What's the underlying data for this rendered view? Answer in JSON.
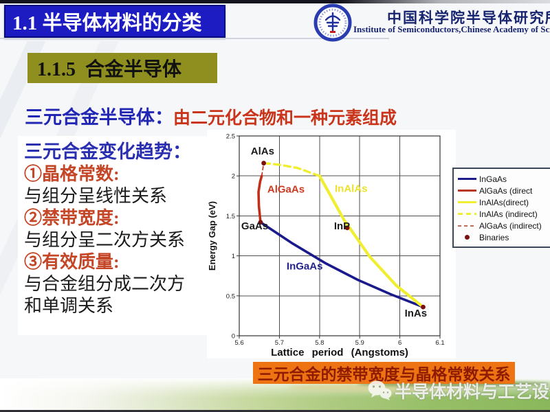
{
  "header": {
    "title": "1.1 半导体材料的分类"
  },
  "org": {
    "logo_icon": "cas-semiconductor-institute-logo",
    "name_cn": "中国科学院半导体研究所",
    "name_en": "Institute of Semiconductors,Chinese Academy of Sciences"
  },
  "section": {
    "label": "1.1.5  合金半导体"
  },
  "intro": {
    "lead": "三元合金半导体：",
    "desc": "由二元化合物和一种元素组成"
  },
  "notes": {
    "lines": [
      "三元合金变化趋势：",
      "①晶格常数:",
      "与组分呈线性关系",
      "②禁带宽度:",
      "与组分呈二次方关系",
      "③有效质量:",
      "与合金组分成二次方",
      "和单调关系"
    ]
  },
  "caption": {
    "text": "三元合金的禁带宽度与晶格常数关系"
  },
  "watermark": {
    "icon": "wechat-icon",
    "text": "半导体材料与工艺设备"
  },
  "colors": {
    "title_bg": "#1c1cc2",
    "section_bg": "#8f8f1f",
    "accent_blue": "#2126b4",
    "accent_red": "#c9341a",
    "banner_bg": "#ee7413",
    "banner_text": "#8e1b00"
  },
  "chart_data": {
    "type": "line",
    "title": "",
    "xlabel": "Lattice period (Angstoms)",
    "ylabel": "Energy Gap (eV)",
    "xlim": [
      5.6,
      6.1
    ],
    "ylim": [
      0,
      2.5
    ],
    "grid": true,
    "legend_position": "right-outside",
    "xticks": [
      "5.6",
      "5.7",
      "5.8",
      "5.9",
      "6",
      "6.1"
    ],
    "yticks": [
      "2.5",
      "2",
      "1.5",
      "1",
      "0.5",
      "0"
    ],
    "series": [
      {
        "name": "InGaAs",
        "style": "solid",
        "color": "#1a1a8c",
        "points": [
          [
            5.653,
            1.42
          ],
          [
            5.734,
            1.15
          ],
          [
            5.814,
            0.91
          ],
          [
            5.895,
            0.7
          ],
          [
            5.977,
            0.52
          ],
          [
            6.058,
            0.36
          ]
        ]
      },
      {
        "name": "AlGaAs (direct)",
        "style": "solid",
        "color": "#c03018",
        "points": [
          [
            5.653,
            1.42
          ],
          [
            5.649,
            1.62
          ],
          [
            5.648,
            1.8
          ],
          [
            5.652,
            1.93
          ],
          [
            5.656,
            2.0
          ]
        ]
      },
      {
        "name": "InAlAs(direct)",
        "style": "solid",
        "color": "#f0ee30",
        "points": [
          [
            5.8,
            2.0
          ],
          [
            5.861,
            1.45
          ],
          [
            5.925,
            0.99
          ],
          [
            5.991,
            0.63
          ],
          [
            6.058,
            0.36
          ]
        ]
      },
      {
        "name": "InAlAs (indirect)",
        "style": "dashed",
        "color": "#f0ee30",
        "points": [
          [
            5.661,
            2.16
          ],
          [
            5.7,
            2.14
          ],
          [
            5.745,
            2.1
          ],
          [
            5.8,
            2.0
          ]
        ]
      },
      {
        "name": "AlGaAs (indirect)",
        "style": "thin-dashed",
        "color": "#c03018",
        "points": [
          [
            5.656,
            2.0
          ],
          [
            5.661,
            2.16
          ]
        ]
      }
    ],
    "binaries": [
      {
        "label": "AlAs",
        "x": 5.661,
        "y": 2.16
      },
      {
        "label": "GaAs",
        "x": 5.653,
        "y": 1.42
      },
      {
        "label": "InP",
        "x": 5.869,
        "y": 1.35
      },
      {
        "label": "InAs",
        "x": 6.058,
        "y": 0.36
      }
    ],
    "labels": [
      {
        "text": "AlAs",
        "x": 5.658,
        "y": 2.27,
        "color": "#1a1a1a",
        "anchor": "middle"
      },
      {
        "text": "AlGaAs",
        "x": 5.67,
        "y": 1.79,
        "color": "#cc3a22",
        "anchor": "start"
      },
      {
        "text": "InAlAs",
        "x": 5.838,
        "y": 1.8,
        "color": "#ece22e",
        "anchor": "start"
      },
      {
        "text": "GaAs",
        "x": 5.605,
        "y": 1.33,
        "color": "#1a1a1a",
        "anchor": "start"
      },
      {
        "text": "InP",
        "x": 5.836,
        "y": 1.33,
        "color": "#1a1a1a",
        "anchor": "start"
      },
      {
        "text": "InGaAs",
        "x": 5.718,
        "y": 0.83,
        "color": "#23238f",
        "anchor": "start"
      },
      {
        "text": "InAs",
        "x": 6.012,
        "y": 0.24,
        "color": "#1a1a1a",
        "anchor": "start"
      }
    ],
    "legend": [
      {
        "label": "InGaAs",
        "style": "solid",
        "color": "#1a1a8c"
      },
      {
        "label": "AlGaAs (direct",
        "style": "solid",
        "color": "#b83520"
      },
      {
        "label": "InAlAs(direct)",
        "style": "solid",
        "color": "#f0ee30"
      },
      {
        "label": "InAlAs (indirect)",
        "style": "dashed",
        "color": "#f0ee30"
      },
      {
        "label": "AlGaAs (indirect)",
        "style": "thin-dashed",
        "color": "#c06a55"
      },
      {
        "label": "Binaries",
        "style": "dot",
        "color": "#7c0f0f"
      }
    ],
    "dot_color": "#7c0f0f"
  }
}
